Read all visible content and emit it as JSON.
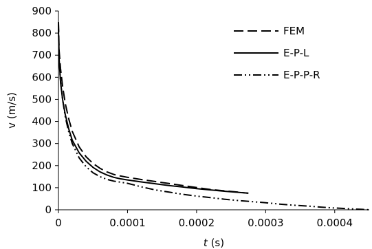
{
  "chart_data": {
    "type": "line",
    "xlabel": "t (s)",
    "xlabel_parts": {
      "var": "t",
      "unit": "(s)"
    },
    "ylabel": "v (m/s)",
    "xlim": [
      0,
      0.00045
    ],
    "ylim": [
      0,
      900
    ],
    "x_ticks": [
      0,
      0.0001,
      0.0002,
      0.0003,
      0.0004
    ],
    "x_tick_labels": [
      "0",
      "0.0001",
      "0.0002",
      "0.0003",
      "0.0004"
    ],
    "y_ticks": [
      0,
      100,
      200,
      300,
      400,
      500,
      600,
      700,
      800,
      900
    ],
    "y_tick_labels": [
      "0",
      "100",
      "200",
      "300",
      "400",
      "500",
      "600",
      "700",
      "800",
      "900"
    ],
    "grid": false,
    "legend_position": "top-right",
    "series": [
      {
        "name": "FEM",
        "style": "long-dash",
        "color": "#000000",
        "x": [
          0,
          1e-06,
          3e-06,
          6e-06,
          1e-05,
          1.5e-05,
          2e-05,
          3e-05,
          4e-05,
          5e-05,
          6e-05,
          7e-05,
          8e-05,
          9e-05,
          0.0001,
          0.00012,
          0.00014,
          0.00016,
          0.00018,
          0.0002,
          0.00022,
          0.00024,
          0.00026,
          0.000275
        ],
        "y": [
          850,
          720,
          640,
          560,
          480,
          410,
          355,
          285,
          240,
          210,
          188,
          172,
          160,
          153,
          147,
          137,
          128,
          119,
          110,
          101,
          92,
          86,
          80,
          75
        ]
      },
      {
        "name": "E-P-L",
        "style": "solid",
        "color": "#000000",
        "x": [
          0,
          1e-06,
          3e-06,
          6e-06,
          1e-05,
          1.5e-05,
          2e-05,
          3e-05,
          4e-05,
          5e-05,
          6e-05,
          7e-05,
          8e-05,
          9e-05,
          0.0001,
          0.00012,
          0.00014,
          0.00016,
          0.00018,
          0.0002,
          0.00022,
          0.00024,
          0.00026,
          0.000275
        ],
        "y": [
          820,
          680,
          580,
          500,
          430,
          365,
          315,
          258,
          220,
          192,
          172,
          158,
          147,
          140,
          135,
          126,
          118,
          110,
          103,
          96,
          90,
          84,
          79,
          75
        ]
      },
      {
        "name": "E-P-P-R",
        "style": "dash-dot-dot",
        "color": "#000000",
        "x": [
          0,
          1e-06,
          3e-06,
          6e-06,
          1e-05,
          1.5e-05,
          2e-05,
          3e-05,
          4e-05,
          5e-05,
          6e-05,
          7e-05,
          8e-05,
          9e-05,
          0.0001,
          0.00012,
          0.00014,
          0.00016,
          0.00018,
          0.0002,
          0.00022,
          0.00024,
          0.00026,
          0.00028,
          0.0003,
          0.00032,
          0.00034,
          0.00036,
          0.00038,
          0.0004,
          0.00042,
          0.00044,
          0.00045
        ],
        "y": [
          840,
          680,
          580,
          500,
          420,
          350,
          300,
          235,
          195,
          168,
          150,
          138,
          130,
          125,
          120,
          104,
          90,
          80,
          70,
          62,
          55,
          48,
          42,
          37,
          32,
          26,
          21,
          17,
          12,
          8,
          5,
          2,
          0
        ]
      }
    ]
  }
}
